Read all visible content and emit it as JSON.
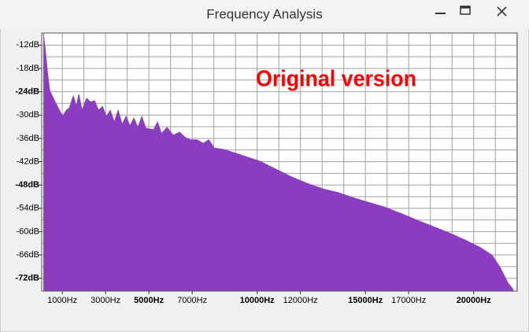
{
  "window": {
    "title": "Frequency Analysis"
  },
  "chart_data": {
    "type": "area",
    "annotation": "Original version",
    "color": "#8b3dc1",
    "annotation_color": "#ff0000",
    "x": [
      127,
      200,
      309,
      418,
      673,
      927,
      1036,
      1182,
      1327,
      1509,
      1655,
      1764,
      1909,
      2127,
      2309,
      2491,
      2673,
      2855,
      3036,
      3218,
      3400,
      3582,
      3764,
      3945,
      4127,
      4309,
      4491,
      4673,
      4855,
      5218,
      5400,
      5582,
      5836,
      6127,
      6418,
      6673,
      6927,
      7218,
      7509,
      7764,
      8018,
      8491,
      9036,
      9582,
      10127,
      10855,
      11582,
      12309,
      13036,
      13764,
      14491,
      15218,
      15945,
      16673,
      17400,
      18127,
      18855,
      19582,
      20309,
      20855,
      21218,
      21582,
      21836
    ],
    "values": [
      -9,
      -12.6,
      -18.7,
      -23.7,
      -26.7,
      -29.4,
      -30.2,
      -28.8,
      -28.2,
      -25.1,
      -27.8,
      -24.7,
      -28.8,
      -25.7,
      -26.7,
      -26.3,
      -28.8,
      -27.8,
      -30.4,
      -28.8,
      -31.8,
      -28.8,
      -32.4,
      -30.4,
      -32.8,
      -30.8,
      -33.2,
      -30.4,
      -33.4,
      -33.8,
      -31.8,
      -34.8,
      -33.2,
      -35.2,
      -34.4,
      -35.8,
      -36.4,
      -36.4,
      -37.3,
      -36.4,
      -38.5,
      -38.9,
      -39.9,
      -40.9,
      -41.9,
      -43.9,
      -45.9,
      -47.6,
      -49,
      -50,
      -51.4,
      -52.6,
      -53.8,
      -55.4,
      -57.1,
      -58.7,
      -60.3,
      -62.1,
      -64.1,
      -66.1,
      -69.2,
      -73.2,
      -75
    ],
    "xlim": [
      50,
      22010
    ],
    "ylim": [
      -75.3,
      -8.9
    ],
    "xticks": [
      {
        "value": 1000,
        "label": "1000Hz"
      },
      {
        "value": 3000,
        "label": "3000Hz"
      },
      {
        "value": 5000,
        "label": "5000Hz",
        "bold": true
      },
      {
        "value": 7000,
        "label": "7000Hz"
      },
      {
        "value": 10000,
        "label": "10000Hz",
        "bold": true
      },
      {
        "value": 12000,
        "label": "12000Hz"
      },
      {
        "value": 15000,
        "label": "15000Hz",
        "bold": true
      },
      {
        "value": 17000,
        "label": "17000Hz"
      },
      {
        "value": 20000,
        "label": "20000Hz",
        "bold": true
      }
    ],
    "yticks": [
      {
        "value": -12,
        "label": "-12dB"
      },
      {
        "value": -18,
        "label": "-18dB"
      },
      {
        "value": -24,
        "label": "-24dB",
        "bold": true
      },
      {
        "value": -30,
        "label": "-30dB"
      },
      {
        "value": -36,
        "label": "-36dB"
      },
      {
        "value": -42,
        "label": "-42dB"
      },
      {
        "value": -48,
        "label": "-48dB",
        "bold": true
      },
      {
        "value": -54,
        "label": "-54dB"
      },
      {
        "value": -60,
        "label": "-60dB"
      },
      {
        "value": -66,
        "label": "-66dB"
      },
      {
        "value": -72,
        "label": "-72dB",
        "bold": true
      }
    ],
    "xgrid": [
      1000,
      2000,
      3000,
      4000,
      5000,
      6000,
      7000,
      8000,
      9000,
      10000,
      11000,
      12000,
      13000,
      14000,
      15000,
      16000,
      17000,
      18000,
      19000,
      20000,
      21000,
      22000
    ],
    "ygrid": [
      -12,
      -15,
      -18,
      -21,
      -24,
      -27,
      -30,
      -33,
      -36,
      -39,
      -42,
      -45,
      -48,
      -51,
      -54,
      -57,
      -60,
      -63,
      -66,
      -69,
      -72
    ]
  }
}
